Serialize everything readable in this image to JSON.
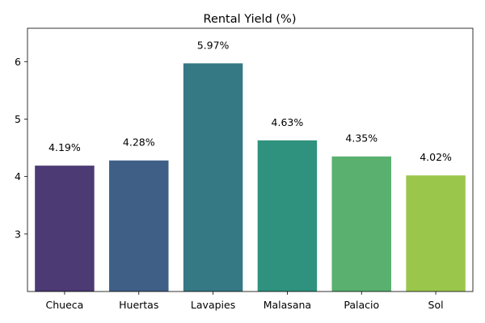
{
  "chart_data": {
    "type": "bar",
    "title": "Rental Yield (%)",
    "xlabel": "",
    "ylabel": "",
    "categories": [
      "Chueca",
      "Huertas",
      "Lavapies",
      "Malasana",
      "Palacio",
      "Sol"
    ],
    "values": [
      4.19,
      4.28,
      5.97,
      4.63,
      4.35,
      4.02
    ],
    "data_labels": [
      "4.19%",
      "4.28%",
      "5.97%",
      "4.63%",
      "4.35%",
      "4.02%"
    ],
    "colors": [
      "#4b3a73",
      "#3f5f87",
      "#357984",
      "#2f927e",
      "#59b06f",
      "#9bc64c"
    ],
    "ylim": [
      2.0,
      6.58
    ],
    "yticks": [
      3,
      4,
      5,
      6
    ],
    "grid": false,
    "legend": "none"
  }
}
